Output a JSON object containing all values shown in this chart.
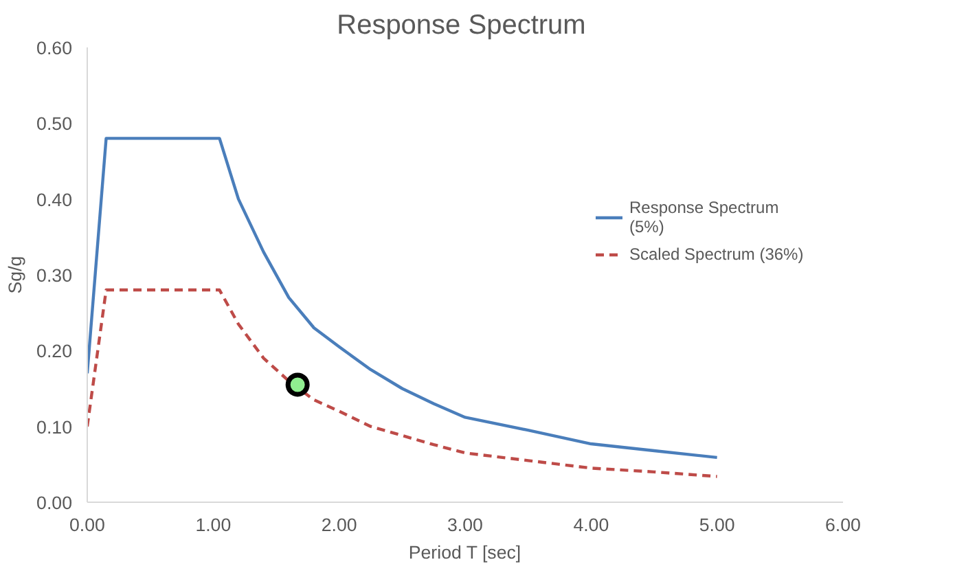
{
  "chart_data": {
    "type": "line",
    "title": "Response  Spectrum",
    "xlabel": "Period T [sec]",
    "ylabel": "Sg/g",
    "xlim": [
      0,
      6
    ],
    "xticks": [
      {
        "value": 0,
        "label": "0.00"
      },
      {
        "value": 1,
        "label": "1.00"
      },
      {
        "value": 2,
        "label": "2.00"
      },
      {
        "value": 3,
        "label": "3.00"
      },
      {
        "value": 4,
        "label": "4.00"
      },
      {
        "value": 5,
        "label": "5.00"
      },
      {
        "value": 6,
        "label": "6.00"
      }
    ],
    "ylim": [
      0,
      0.6
    ],
    "yticks": [
      {
        "value": 0,
        "label": "0.00"
      },
      {
        "value": 0.1,
        "label": "0.10"
      },
      {
        "value": 0.2,
        "label": "0.20"
      },
      {
        "value": 0.3,
        "label": "0.30"
      },
      {
        "value": 0.4,
        "label": "0.40"
      },
      {
        "value": 0.5,
        "label": "0.50"
      },
      {
        "value": 0.6,
        "label": "0.60"
      }
    ],
    "grid": false,
    "legend": "right",
    "series": [
      {
        "name": "Response Spectrum\n(5%)",
        "color": "#4a7ebb",
        "line_style": "solid",
        "marker": "none",
        "x": [
          0,
          0.15,
          1.05,
          1.2,
          1.4,
          1.6,
          1.8,
          2.0,
          2.25,
          2.5,
          2.75,
          3.0,
          3.5,
          4.0,
          4.5,
          5.0
        ],
        "values": [
          0.17,
          0.48,
          0.48,
          0.4,
          0.33,
          0.27,
          0.23,
          0.205,
          0.175,
          0.15,
          0.13,
          0.112,
          0.095,
          0.077,
          0.068,
          0.059
        ]
      },
      {
        "name": "Scaled Spectrum (36%)",
        "color": "#be4b48",
        "line_style": "dashed",
        "marker": "none",
        "x": [
          0,
          0.15,
          1.05,
          1.2,
          1.4,
          1.6,
          1.8,
          2.0,
          2.25,
          2.5,
          2.75,
          3.0,
          3.5,
          4.0,
          4.5,
          5.0
        ],
        "values": [
          0.1,
          0.28,
          0.28,
          0.235,
          0.19,
          0.16,
          0.135,
          0.12,
          0.1,
          0.088,
          0.076,
          0.065,
          0.055,
          0.045,
          0.04,
          0.034
        ]
      },
      {
        "type": "scatter",
        "color": "#90ee90",
        "marker": "circle",
        "x": [
          1.67
        ],
        "values": [
          0.155
        ]
      }
    ]
  }
}
